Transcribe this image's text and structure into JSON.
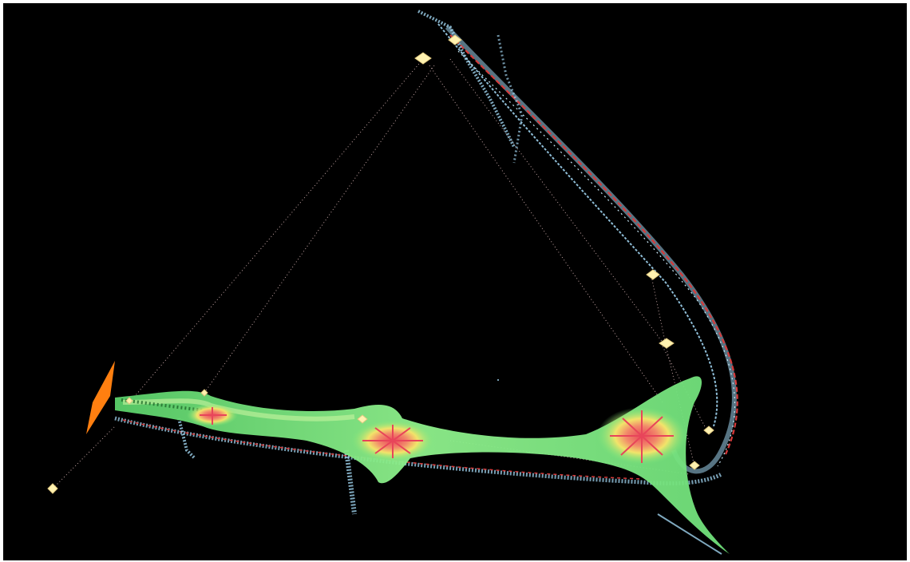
{
  "scene": {
    "background_color": "#000000",
    "frame_color": "#ffffff",
    "colors": {
      "surface_green": "#7de87d",
      "surface_light_green": "#c8f5a0",
      "surface_yellow": "#f2e46a",
      "surface_red": "#e8455a",
      "fractal_blue": "#9fd3ef",
      "fractal_red": "#d83a3a",
      "orbit_line": "#e7c2c2",
      "marker_fill": "#fff2b0",
      "plane_orange": "#ff7f10"
    },
    "markers_count": 10
  }
}
